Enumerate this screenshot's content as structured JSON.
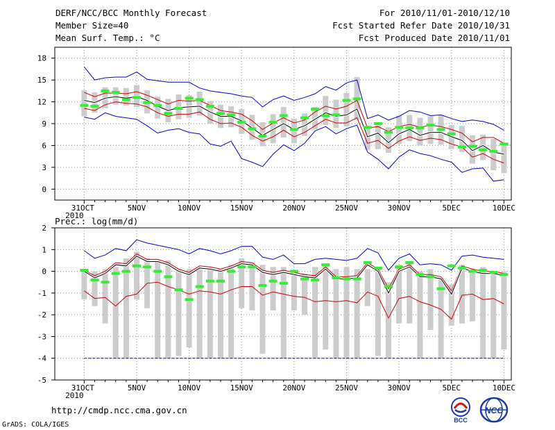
{
  "header": {
    "title": "DERF/NCC/BCC Monthly Forecast",
    "member_size": "Member Size=40",
    "variable": "Mean Surf. Temp.: °C",
    "period": "For 2010/11/01-2010/12/10",
    "fcst_started": "Fcst Started Refer Date 2010/10/31",
    "fcst_produced": "Fcst Produced Date 2010/11/01"
  },
  "footer": {
    "url": "http://cmdp.ncc.cma.gov.cn",
    "grads": "GrADS: COLA/IGES",
    "logo_left": "BCC",
    "logo_right": "NCC"
  },
  "colors": {
    "envelope": "#0000cc",
    "spread": "#cc0000",
    "mean": "#000000",
    "observed": "#33ee33",
    "box": "#cccccc",
    "grid": "#888888"
  },
  "chart_data": [
    {
      "type": "line",
      "panel": "top",
      "title": "Mean Surf. Temp.: °C",
      "ylim": [
        -1.5,
        19.5
      ],
      "yticks": [
        0,
        3,
        6,
        9,
        12,
        15,
        18
      ],
      "ytick_labels": [
        "0",
        "3",
        "6",
        "9",
        "12",
        "15",
        "18"
      ],
      "x": [
        0,
        1,
        2,
        3,
        4,
        5,
        6,
        7,
        8,
        9,
        10,
        11,
        12,
        13,
        14,
        15,
        16,
        17,
        18,
        19,
        20,
        21,
        22,
        23,
        24,
        25,
        26,
        27,
        28,
        29,
        30,
        31,
        32,
        33,
        34,
        35,
        36,
        37,
        38,
        39,
        40
      ],
      "xticks": [
        0,
        5,
        10,
        15,
        20,
        25,
        30,
        35,
        40
      ],
      "xtick_labels": [
        "31OCT",
        "5NOV",
        "10NOV",
        "15NOV",
        "20NOV",
        "25NOV",
        "30NOV",
        "5DEC",
        "10DEC"
      ],
      "x_sub_label": "2010",
      "series": [
        {
          "name": "max",
          "values": [
            16.8,
            15.0,
            15.3,
            15.4,
            15.4,
            16.1,
            15.1,
            14.9,
            14.7,
            14.7,
            14.7,
            13.9,
            13.5,
            13.3,
            13.1,
            12.8,
            12.6,
            11.3,
            12.3,
            12.8,
            12.2,
            12.6,
            13.1,
            14.1,
            13.6,
            14.6,
            15.0,
            9.7,
            10.2,
            9.5,
            10.0,
            10.8,
            10.6,
            10.1,
            10.2,
            9.7,
            9.3,
            9.5,
            9.3,
            8.9,
            8.1
          ]
        },
        {
          "name": "upper",
          "values": [
            13.3,
            12.7,
            13.2,
            13.2,
            13.1,
            13.4,
            12.9,
            12.3,
            11.7,
            12.2,
            12.1,
            12.2,
            11.5,
            10.8,
            10.6,
            10.3,
            9.4,
            8.2,
            9.1,
            9.8,
            9.1,
            9.5,
            10.6,
            11.4,
            11.0,
            11.4,
            12.2,
            8.4,
            8.6,
            7.9,
            8.6,
            8.9,
            8.5,
            8.8,
            8.6,
            8.2,
            7.7,
            6.5,
            7.1,
            7.1,
            6.3
          ]
        },
        {
          "name": "mean",
          "values": [
            12.2,
            11.9,
            12.5,
            12.7,
            12.5,
            12.7,
            12.2,
            11.4,
            10.8,
            11.2,
            11.3,
            11.4,
            10.6,
            10.0,
            10.0,
            9.4,
            8.4,
            7.4,
            8.2,
            9.0,
            8.2,
            8.7,
            9.6,
            10.5,
            10.0,
            10.2,
            11.0,
            7.2,
            7.7,
            6.4,
            7.6,
            8.2,
            7.4,
            7.8,
            7.8,
            7.2,
            6.7,
            5.3,
            6.0,
            5.1,
            4.8
          ]
        },
        {
          "name": "lower",
          "values": [
            11.1,
            10.8,
            11.6,
            12.0,
            11.8,
            11.7,
            11.3,
            10.5,
            10.0,
            10.3,
            10.3,
            10.6,
            9.6,
            9.0,
            9.1,
            8.5,
            7.4,
            6.6,
            7.2,
            8.1,
            7.2,
            7.8,
            8.7,
            9.6,
            9.1,
            9.1,
            9.8,
            6.3,
            6.7,
            5.6,
            6.6,
            7.2,
            6.7,
            7.0,
            6.8,
            6.2,
            5.8,
            4.4,
            4.9,
            4.1,
            3.6
          ]
        },
        {
          "name": "min",
          "values": [
            9.9,
            9.6,
            10.5,
            10.0,
            9.8,
            9.6,
            8.7,
            7.7,
            8.1,
            8.3,
            7.8,
            7.6,
            6.2,
            5.9,
            6.6,
            4.2,
            3.7,
            3.1,
            4.8,
            6.1,
            5.3,
            6.3,
            8.0,
            8.6,
            7.6,
            8.3,
            8.8,
            5.1,
            4.1,
            2.8,
            4.4,
            5.4,
            4.9,
            4.6,
            4.1,
            3.7,
            2.3,
            2.8,
            2.9,
            1.1,
            1.3
          ]
        }
      ],
      "box_low": [
        10.0,
        10.5,
        11.1,
        11.6,
        11.5,
        11.3,
        10.4,
        9.7,
        9.2,
        9.6,
        9.8,
        10.1,
        9.0,
        8.4,
        8.5,
        7.6,
        6.8,
        5.9,
        6.3,
        7.1,
        6.3,
        7.3,
        8.2,
        8.8,
        8.4,
        8.6,
        9.5,
        5.4,
        5.5,
        5.0,
        6.2,
        6.6,
        6.0,
        6.2,
        6.1,
        5.5,
        5.1,
        3.5,
        4.0,
        2.6,
        2.2
      ],
      "box_high": [
        13.6,
        13.3,
        14.0,
        14.0,
        13.9,
        14.3,
        13.6,
        12.7,
        12.4,
        13.0,
        12.9,
        13.4,
        12.1,
        11.6,
        11.4,
        11.0,
        10.2,
        9.2,
        10.3,
        11.3,
        9.7,
        10.4,
        11.3,
        12.8,
        12.3,
        13.2,
        15.4,
        8.6,
        8.9,
        8.5,
        10.1,
        10.2,
        9.8,
        10.0,
        10.2,
        8.8,
        8.7,
        7.4,
        7.5,
        6.9,
        6.2
      ],
      "observed": [
        11.5,
        11.4,
        13.5,
        13.3,
        12.3,
        12.6,
        11.9,
        11.5,
        10.4,
        11.1,
        12.5,
        12.3,
        11.4,
        10.4,
        10.2,
        9.2,
        8.3,
        7.3,
        9.2,
        10.1,
        8.2,
        9.8,
        11.0,
        10.1,
        10.2,
        12.2,
        12.4,
        8.5,
        9.0,
        7.8,
        8.5,
        8.4,
        8.4,
        8.8,
        8.2,
        7.6,
        5.8,
        5.9,
        5.4,
        5.2,
        6.2
      ]
    },
    {
      "type": "line",
      "panel": "bottom",
      "title": "Prec.: log(mm/d)",
      "ylim": [
        -5,
        2
      ],
      "yticks": [
        -5,
        -4,
        -3,
        -2,
        -1,
        0,
        1,
        2
      ],
      "ytick_labels": [
        "-5",
        "-4",
        "-3",
        "-2",
        "-1",
        "0",
        "1",
        "2"
      ],
      "x": [
        0,
        1,
        2,
        3,
        4,
        5,
        6,
        7,
        8,
        9,
        10,
        11,
        12,
        13,
        14,
        15,
        16,
        17,
        18,
        19,
        20,
        21,
        22,
        23,
        24,
        25,
        26,
        27,
        28,
        29,
        30,
        31,
        32,
        33,
        34,
        35,
        36,
        37,
        38,
        39,
        40
      ],
      "xticks": [
        0,
        5,
        10,
        15,
        20,
        25,
        30,
        35,
        40
      ],
      "xtick_labels": [
        "31OCT",
        "5NOV",
        "10NOV",
        "15NOV",
        "20NOV",
        "25NOV",
        "30NOV",
        "5DEC",
        "10DEC"
      ],
      "x_sub_label": "2010",
      "series": [
        {
          "name": "max",
          "values": [
            0.95,
            0.6,
            0.75,
            1.05,
            0.95,
            1.45,
            1.3,
            1.2,
            1.1,
            1.0,
            0.8,
            1.05,
            0.95,
            0.8,
            0.95,
            1.15,
            1.15,
            0.65,
            0.55,
            0.75,
            0.35,
            0.35,
            0.55,
            0.6,
            0.55,
            0.5,
            0.6,
            1.05,
            0.85,
            0.05,
            0.6,
            0.8,
            0.3,
            0.35,
            0.3,
            0.05,
            0.7,
            0.75,
            0.65,
            0.6,
            0.55
          ]
        },
        {
          "name": "upper",
          "values": [
            0.05,
            -0.2,
            0.0,
            0.4,
            0.35,
            0.8,
            0.55,
            0.55,
            0.4,
            0.1,
            -0.05,
            0.25,
            0.2,
            0.1,
            0.25,
            0.45,
            0.4,
            0.05,
            -0.05,
            0.05,
            -0.05,
            -0.15,
            -0.2,
            0.2,
            -0.25,
            -0.25,
            -0.2,
            0.4,
            0.1,
            -0.8,
            0.1,
            0.3,
            -0.15,
            -0.15,
            -0.25,
            -0.9,
            0.25,
            0.1,
            0.0,
            0.0,
            -0.1
          ]
        },
        {
          "name": "mean",
          "values": [
            0.0,
            -0.3,
            -0.1,
            0.3,
            0.25,
            0.7,
            0.45,
            0.45,
            0.3,
            0.0,
            -0.15,
            0.15,
            0.1,
            0.0,
            0.15,
            0.35,
            0.3,
            -0.05,
            -0.15,
            -0.05,
            -0.15,
            -0.25,
            -0.3,
            0.1,
            -0.35,
            -0.35,
            -0.3,
            0.3,
            0.0,
            -1.0,
            0.0,
            0.2,
            -0.25,
            -0.25,
            -0.35,
            -1.05,
            0.15,
            0.0,
            -0.1,
            -0.1,
            -0.2
          ]
        },
        {
          "name": "lower",
          "values": [
            -0.9,
            -1.25,
            -1.2,
            -1.6,
            -1.15,
            -1.05,
            -0.55,
            -0.5,
            -0.7,
            -0.85,
            -1.05,
            -0.9,
            -0.95,
            -1.05,
            -0.85,
            -0.7,
            -0.7,
            -1.1,
            -0.95,
            -1.05,
            -1.15,
            -1.2,
            -1.4,
            -1.35,
            -1.4,
            -1.35,
            -1.45,
            -0.95,
            -1.15,
            -2.15,
            -1.25,
            -1.15,
            -1.4,
            -1.55,
            -1.75,
            -2.2,
            -1.1,
            -1.05,
            -1.3,
            -1.25,
            -1.5
          ]
        },
        {
          "name": "min",
          "values": [
            -4,
            -4,
            -4,
            -4,
            -4,
            -4,
            -4,
            -4,
            -4,
            -4,
            -4,
            -4,
            -4,
            -4,
            -4,
            -4,
            -4,
            -4,
            -4,
            -4,
            -4,
            -4,
            -4,
            -4,
            -4,
            -4,
            -4,
            -4,
            -4,
            -4,
            -4,
            -4,
            -4,
            -4,
            -4,
            -4,
            -4,
            -4,
            -4,
            -4,
            -4
          ]
        }
      ],
      "box_low": [
        -1.3,
        -1.6,
        -2.4,
        -4.0,
        -4.0,
        -1.3,
        -1.7,
        -4.0,
        -4.0,
        -3.9,
        -3.5,
        -4.0,
        -4.0,
        -4.0,
        -4.0,
        -1.7,
        -1.8,
        -3.8,
        -1.8,
        -4.0,
        -1.8,
        -2.0,
        -4.0,
        -3.6,
        -4.0,
        -4.0,
        -4.0,
        -1.6,
        -3.9,
        -4.0,
        -2.4,
        -2.4,
        -4.0,
        -2.7,
        -4.0,
        -2.5,
        -2.4,
        -2.3,
        -4.0,
        -4.0,
        -3.6
      ],
      "box_high": [
        0.1,
        0.0,
        0.1,
        0.2,
        0.6,
        0.9,
        0.6,
        0.5,
        0.5,
        0.1,
        0.1,
        0.1,
        0.1,
        0.1,
        0.3,
        0.6,
        0.4,
        0.3,
        0.2,
        0.2,
        0.0,
        -0.1,
        0.2,
        0.3,
        0.1,
        0.2,
        0.1,
        0.1,
        0.2,
        -0.5,
        0.3,
        0.4,
        0.0,
        0.1,
        -0.3,
        -0.6,
        0.3,
        0.1,
        0.2,
        0.0,
        0.0
      ],
      "observed": [
        0.05,
        -0.4,
        -0.5,
        -0.1,
        0.0,
        0.25,
        0.2,
        0.0,
        -0.25,
        -0.85,
        -1.3,
        -0.7,
        -0.45,
        -0.45,
        0.0,
        0.2,
        0.2,
        -0.65,
        -0.45,
        -0.55,
        0.0,
        -0.35,
        -0.4,
        0.3,
        -0.3,
        -0.35,
        -0.35,
        0.4,
        0.15,
        -0.7,
        0.2,
        0.4,
        -0.15,
        -0.25,
        -0.8,
        0.25,
        0.15,
        0.0,
        0.05,
        -0.05,
        -0.15
      ]
    }
  ]
}
